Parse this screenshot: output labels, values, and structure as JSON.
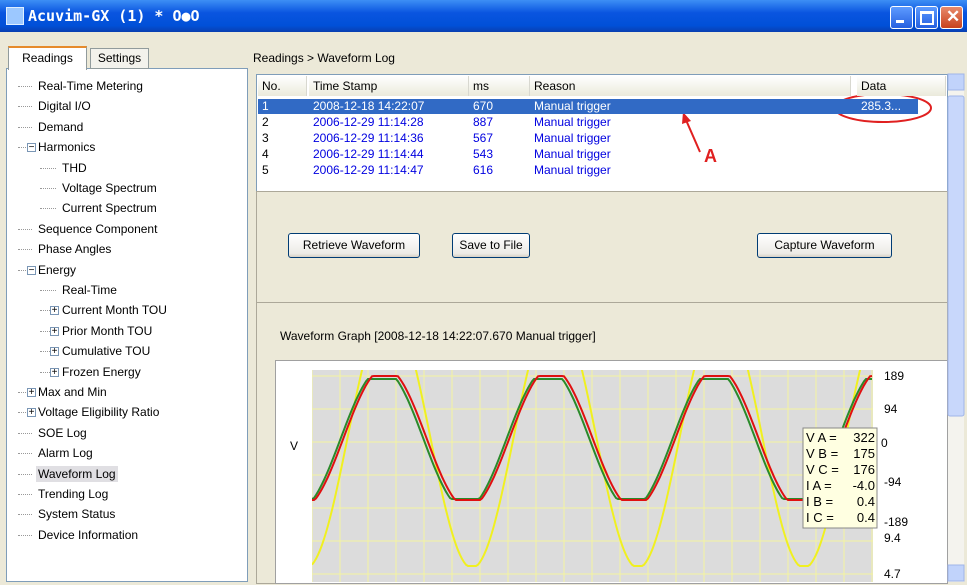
{
  "window": {
    "title": "Acuvim-GX (1) * O●O"
  },
  "tabs": [
    "Readings",
    "Settings"
  ],
  "tree": [
    {
      "label": "Real-Time Metering"
    },
    {
      "label": "Digital I/O"
    },
    {
      "label": "Demand"
    },
    {
      "label": "Harmonics",
      "expanded": true,
      "children": [
        {
          "label": "THD"
        },
        {
          "label": "Voltage Spectrum"
        },
        {
          "label": "Current Spectrum"
        }
      ]
    },
    {
      "label": "Sequence Component"
    },
    {
      "label": "Phase Angles"
    },
    {
      "label": "Energy",
      "expanded": true,
      "children": [
        {
          "label": "Real-Time"
        },
        {
          "label": "Current Month TOU",
          "expanded": false
        },
        {
          "label": "Prior Month TOU",
          "expanded": false
        },
        {
          "label": "Cumulative TOU",
          "expanded": false
        },
        {
          "label": "Frozen Energy",
          "expanded": false
        }
      ]
    },
    {
      "label": "Max and Min",
      "expanded": false
    },
    {
      "label": "Voltage Eligibility Ratio",
      "expanded": false
    },
    {
      "label": "SOE Log"
    },
    {
      "label": "Alarm Log"
    },
    {
      "label": "Waveform Log",
      "selected": true
    },
    {
      "label": "Trending Log"
    },
    {
      "label": "System Status"
    },
    {
      "label": "Device Information"
    }
  ],
  "breadcrumb": "Readings > Waveform Log",
  "table": {
    "columns": [
      "No.",
      "Time Stamp",
      "ms",
      "Reason",
      "Data"
    ],
    "selected_row": 0,
    "rows": [
      [
        "1",
        "2008-12-18 14:22:07",
        "670",
        "Manual trigger",
        "285.3..."
      ],
      [
        "2",
        "2006-12-29 11:14:28",
        "887",
        "Manual trigger"
      ],
      [
        "3",
        "2006-12-29 11:14:36",
        "567",
        "Manual trigger"
      ],
      [
        "4",
        "2006-12-29 11:14:44",
        "543",
        "Manual trigger"
      ],
      [
        "5",
        "2006-12-29 11:14:47",
        "616",
        "Manual trigger"
      ]
    ]
  },
  "annotation": "A",
  "buttons": [
    "Retrieve Waveform",
    "Save to File",
    "Capture Waveform"
  ],
  "graph": {
    "title": "Waveform Graph  [2008-12-18 14:22:07.670 Manual trigger]",
    "y_label": "V",
    "ticks": [
      "189",
      "94",
      "0",
      "-94",
      "-189",
      "9.4",
      "4.7"
    ],
    "tooltip": [
      [
        "V A =",
        "322"
      ],
      [
        "V B =",
        "175"
      ],
      [
        "V C =",
        "176"
      ],
      [
        "I A =",
        "-4.0"
      ],
      [
        "I B =",
        "0.4"
      ],
      [
        "I C =",
        "0.4"
      ]
    ]
  }
}
